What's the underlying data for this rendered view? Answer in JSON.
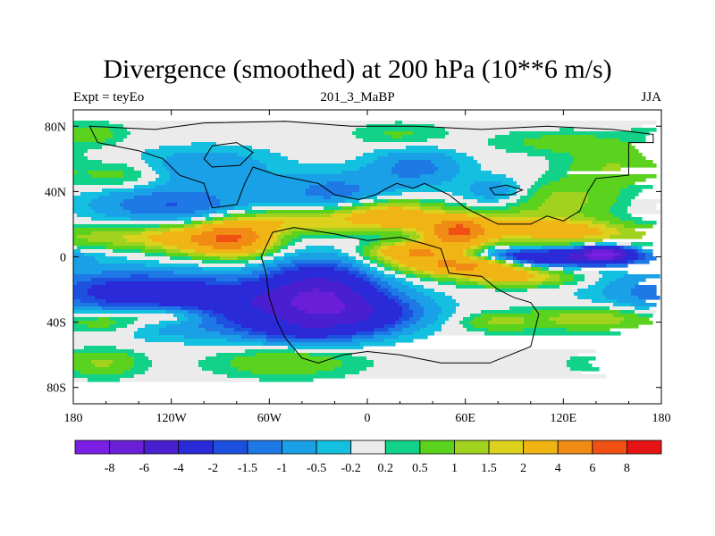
{
  "chart_data": {
    "type": "heatmap",
    "title": "Divergence (smoothed) at 200 hPa (10**6 m/s)",
    "subtitle_left": "Expt = teyEo",
    "subtitle_center": "201_3_MaBP",
    "subtitle_right": "JJA",
    "xlim": [
      -180,
      180
    ],
    "ylim": [
      -90,
      90
    ],
    "x_ticks": [
      {
        "value": -180,
        "label": "180"
      },
      {
        "value": -120,
        "label": "120W"
      },
      {
        "value": -60,
        "label": "60W"
      },
      {
        "value": 0,
        "label": "0"
      },
      {
        "value": 60,
        "label": "60E"
      },
      {
        "value": 120,
        "label": "120E"
      },
      {
        "value": 180,
        "label": "180"
      }
    ],
    "y_ticks": [
      {
        "value": 80,
        "label": "80N"
      },
      {
        "value": 40,
        "label": "40N"
      },
      {
        "value": 0,
        "label": "0"
      },
      {
        "value": -40,
        "label": "40S"
      },
      {
        "value": -80,
        "label": "80S"
      }
    ],
    "colorbar": {
      "colors": [
        "#7b1fe6",
        "#6a1fd6",
        "#4a1fd0",
        "#2a2ad8",
        "#1e50e0",
        "#1e78e6",
        "#1aa0e6",
        "#14c0e0",
        "#ebebeb",
        "#12d28a",
        "#5ad21e",
        "#a0d21e",
        "#dcd21e",
        "#f0b414",
        "#f08c14",
        "#f05014",
        "#e61414"
      ],
      "labels": [
        "-8",
        "-6",
        "-4",
        "-2",
        "-1.5",
        "-1",
        "-0.5",
        "-0.2",
        "0.2",
        "0.5",
        "1",
        "1.5",
        "2",
        "4",
        "6",
        "8"
      ]
    },
    "features": [
      {
        "lon": -90,
        "lat": -30,
        "value": -3.5,
        "sx": 55,
        "sy": 10
      },
      {
        "lon": -30,
        "lat": -22,
        "value": -4.5,
        "sx": 22,
        "sy": 12
      },
      {
        "lon": -5,
        "lat": -35,
        "value": -2.5,
        "sx": 25,
        "sy": 8
      },
      {
        "lon": -150,
        "lat": -18,
        "value": -1.5,
        "sx": 40,
        "sy": 8
      },
      {
        "lon": -40,
        "lat": -45,
        "value": -1.5,
        "sx": 25,
        "sy": 6
      },
      {
        "lon": 120,
        "lat": 0,
        "value": -3.5,
        "sx": 35,
        "sy": 3.5
      },
      {
        "lon": 145,
        "lat": 2,
        "value": -6.5,
        "sx": 10,
        "sy": 3
      },
      {
        "lon": 90,
        "lat": -5,
        "value": -1.2,
        "sx": 30,
        "sy": 5
      },
      {
        "lon": -80,
        "lat": 12,
        "value": 4.5,
        "sx": 15,
        "sy": 7
      },
      {
        "lon": -140,
        "lat": 12,
        "value": 1.5,
        "sx": 35,
        "sy": 5
      },
      {
        "lon": -100,
        "lat": 10,
        "value": 2.5,
        "sx": 20,
        "sy": 6
      },
      {
        "lon": 30,
        "lat": 3,
        "value": 4.0,
        "sx": 18,
        "sy": 4
      },
      {
        "lon": 60,
        "lat": -5,
        "value": 5.0,
        "sx": 25,
        "sy": 4
      },
      {
        "lon": 90,
        "lat": -12,
        "value": 2.5,
        "sx": 25,
        "sy": 4
      },
      {
        "lon": 55,
        "lat": 15,
        "value": 5.5,
        "sx": 12,
        "sy": 6
      },
      {
        "lon": 85,
        "lat": 18,
        "value": 2.2,
        "sx": 30,
        "sy": 6
      },
      {
        "lon": 130,
        "lat": 15,
        "value": 1.8,
        "sx": 25,
        "sy": 5
      },
      {
        "lon": 15,
        "lat": 25,
        "value": 3.0,
        "sx": 20,
        "sy": 6
      },
      {
        "lon": -40,
        "lat": 22,
        "value": 2.0,
        "sx": 25,
        "sy": 5
      },
      {
        "lon": 120,
        "lat": 35,
        "value": 1.2,
        "sx": 25,
        "sy": 8
      },
      {
        "lon": -120,
        "lat": -35,
        "value": 2.5,
        "sx": 25,
        "sy": 5
      },
      {
        "lon": -160,
        "lat": -40,
        "value": 1.0,
        "sx": 15,
        "sy": 5
      },
      {
        "lon": 140,
        "lat": -38,
        "value": 1.5,
        "sx": 30,
        "sy": 5
      },
      {
        "lon": 80,
        "lat": -40,
        "value": 1.0,
        "sx": 15,
        "sy": 4
      },
      {
        "lon": -160,
        "lat": -65,
        "value": 1.0,
        "sx": 15,
        "sy": 6
      },
      {
        "lon": -50,
        "lat": -65,
        "value": 1.0,
        "sx": 30,
        "sy": 6
      },
      {
        "lon": 155,
        "lat": -65,
        "value": 0.8,
        "sx": 20,
        "sy": 5
      },
      {
        "lon": -120,
        "lat": 32,
        "value": -1.5,
        "sx": 35,
        "sy": 8
      },
      {
        "lon": -20,
        "lat": 40,
        "value": -1.2,
        "sx": 25,
        "sy": 8
      },
      {
        "lon": 30,
        "lat": 55,
        "value": -1.2,
        "sx": 20,
        "sy": 8
      },
      {
        "lon": -100,
        "lat": 55,
        "value": -1.0,
        "sx": 30,
        "sy": 8
      },
      {
        "lon": 80,
        "lat": 40,
        "value": -1.0,
        "sx": 15,
        "sy": 6
      },
      {
        "lon": -150,
        "lat": 50,
        "value": 0.8,
        "sx": 20,
        "sy": 6
      },
      {
        "lon": 150,
        "lat": 55,
        "value": 1.0,
        "sx": 20,
        "sy": 8
      },
      {
        "lon": -170,
        "lat": 75,
        "value": 0.8,
        "sx": 15,
        "sy": 5
      },
      {
        "lon": 120,
        "lat": 70,
        "value": 0.7,
        "sx": 30,
        "sy": 5
      },
      {
        "lon": 20,
        "lat": 75,
        "value": 0.6,
        "sx": 20,
        "sy": 5
      }
    ]
  }
}
